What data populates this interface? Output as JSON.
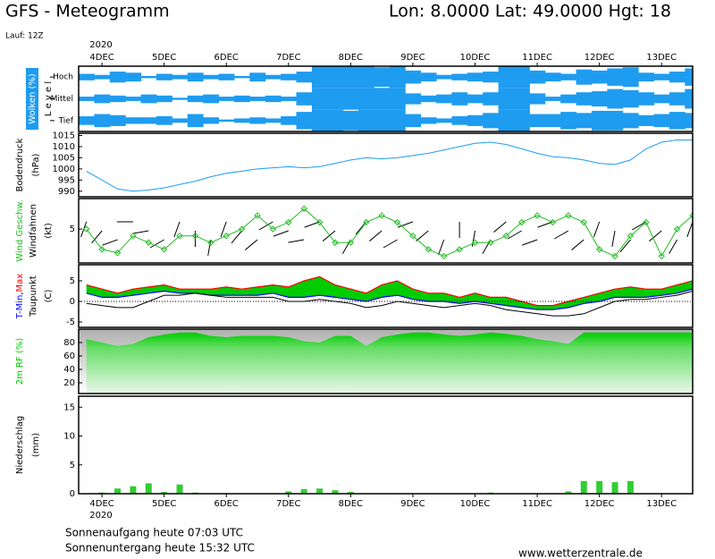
{
  "header": {
    "title": "GFS - Meteogramm",
    "location": "Lon: 8.0000  Lat: 49.0000  Hgt: 18",
    "run": "Lauf: 12Z"
  },
  "time_axis": {
    "year": "2020",
    "xlim": [
      -0.375,
      9.5
    ],
    "xticks": [
      {
        "value": 0,
        "label": "4DEC"
      },
      {
        "value": 1,
        "label": "5DEC"
      },
      {
        "value": 2,
        "label": "6DEC"
      },
      {
        "value": 3,
        "label": "7DEC"
      },
      {
        "value": 4,
        "label": "8DEC"
      },
      {
        "value": 5,
        "label": "9DEC"
      },
      {
        "value": 6,
        "label": "10DEC"
      },
      {
        "value": 7,
        "label": "11DEC"
      },
      {
        "value": 8,
        "label": "12DEC"
      },
      {
        "value": 9,
        "label": "13DEC"
      }
    ],
    "x": [
      -0.25,
      0,
      0.25,
      0.5,
      0.75,
      1,
      1.25,
      1.5,
      1.75,
      2,
      2.25,
      2.5,
      2.75,
      3,
      3.25,
      3.5,
      3.75,
      4,
      4.25,
      4.5,
      4.75,
      5,
      5.25,
      5.5,
      5.75,
      6,
      6.25,
      6.5,
      6.75,
      7,
      7.25,
      7.5,
      7.75,
      8,
      8.25,
      8.5,
      8.75,
      9,
      9.25,
      9.5
    ]
  },
  "chart_data": [
    {
      "type": "cloud-levels",
      "ylabel": "Wolken (%)",
      "level_label": "L e v e l",
      "color": "#1e9cf0",
      "series": [
        {
          "name": "Hoch",
          "values": [
            30,
            20,
            50,
            40,
            10,
            30,
            20,
            40,
            20,
            30,
            10,
            40,
            20,
            30,
            50,
            100,
            100,
            100,
            100,
            90,
            100,
            60,
            40,
            20,
            30,
            40,
            50,
            100,
            100,
            60,
            40,
            30,
            70,
            60,
            80,
            90,
            40,
            30,
            50,
            80
          ]
        },
        {
          "name": "Mittel",
          "values": [
            20,
            40,
            30,
            20,
            40,
            30,
            10,
            30,
            40,
            20,
            30,
            20,
            30,
            20,
            60,
            100,
            100,
            100,
            100,
            100,
            100,
            50,
            30,
            40,
            60,
            40,
            60,
            100,
            100,
            50,
            20,
            40,
            60,
            70,
            90,
            80,
            60,
            40,
            60,
            90
          ]
        },
        {
          "name": "Tief",
          "values": [
            40,
            60,
            50,
            30,
            30,
            40,
            20,
            60,
            30,
            10,
            20,
            30,
            20,
            40,
            80,
            100,
            100,
            90,
            100,
            100,
            100,
            60,
            30,
            20,
            40,
            50,
            70,
            100,
            100,
            60,
            60,
            80,
            70,
            90,
            90,
            70,
            50,
            60,
            80,
            70
          ]
        }
      ]
    },
    {
      "type": "line",
      "ylabel": "Bodendruck",
      "unit": "(hPa)",
      "color": "#1e9cf0",
      "ylim": [
        987.5,
        1016
      ],
      "yticks": [
        990,
        995,
        1000,
        1005,
        1010,
        1015
      ],
      "values": [
        999,
        995,
        991,
        990,
        990.5,
        991.5,
        993,
        994.5,
        996.5,
        998,
        999,
        1000,
        1000.5,
        1001,
        1000.5,
        1001,
        1002.5,
        1004,
        1005,
        1004.5,
        1005,
        1006,
        1007,
        1008.5,
        1010,
        1011.5,
        1012,
        1011,
        1009,
        1007,
        1005.5,
        1005,
        1004,
        1002.5,
        1002,
        1004,
        1009,
        1012,
        1013,
        1013
      ]
    },
    {
      "type": "wind",
      "ylabel": "Wind Geschw.",
      "ylabel2": "Windfahnen",
      "unit": "(kt)",
      "color": "#22bb22",
      "ylim": [
        0,
        9.5
      ],
      "yticks": [
        5
      ],
      "values": [
        5,
        2,
        1.5,
        4,
        3,
        2,
        4,
        4,
        3,
        4,
        5,
        7,
        5,
        6,
        8,
        6,
        3,
        3,
        6,
        7,
        6,
        4,
        2,
        1,
        2,
        3,
        3,
        4,
        6,
        7,
        6,
        7,
        6,
        2,
        1,
        4,
        6,
        1,
        5,
        7
      ],
      "direction": [
        200,
        220,
        250,
        270,
        260,
        240,
        200,
        180,
        190,
        200,
        220,
        230,
        240,
        250,
        260,
        250,
        230,
        210,
        220,
        230,
        240,
        250,
        230,
        200,
        180,
        190,
        210,
        230,
        240,
        250,
        250,
        240,
        230,
        200,
        190,
        220,
        240,
        230,
        210,
        200
      ]
    },
    {
      "type": "temperature",
      "unit": "(C)",
      "label_separator": ",",
      "fill_color": "#00cc00",
      "ylim": [
        -6.3,
        8.9
      ],
      "yticks": [
        -5,
        0,
        5
      ],
      "series": [
        {
          "name": "T-Min",
          "color": "#0000ff",
          "values": [
            2,
            1,
            1,
            1.5,
            2,
            2.5,
            2,
            2,
            1.5,
            1.5,
            1.5,
            1.5,
            2,
            1,
            1,
            1.5,
            1,
            0.5,
            0,
            1,
            1.5,
            0.5,
            0,
            0,
            -0.5,
            0,
            -0.5,
            -1,
            -1.5,
            -2,
            -2,
            -1.5,
            -0.5,
            0,
            1,
            1,
            1,
            1.5,
            2,
            3
          ]
        },
        {
          "name": "Max",
          "color": "#ff0000",
          "values": [
            4,
            3,
            2,
            3,
            3.5,
            4,
            3,
            3,
            3,
            3.5,
            3,
            3.5,
            4,
            3.5,
            5,
            6,
            4,
            3,
            2,
            4,
            5,
            3,
            2,
            2,
            1,
            2,
            1,
            1,
            0,
            -1,
            -1,
            0,
            1,
            2,
            3,
            3.5,
            3,
            3,
            4,
            5
          ]
        },
        {
          "name": "Taupunkt",
          "color": "#000000",
          "values": [
            -0.5,
            -1,
            -1.5,
            -1.5,
            0,
            1.5,
            1.5,
            2,
            1.5,
            1,
            1,
            1,
            1,
            0,
            0,
            0.5,
            0,
            -0.5,
            -1.5,
            -1,
            0,
            -0.5,
            -1,
            -1.5,
            -1,
            -0.5,
            -1,
            -2,
            -2.5,
            -3,
            -3.5,
            -3.5,
            -3,
            -1.5,
            0,
            0.5,
            0.5,
            1,
            1.5,
            2.5
          ]
        }
      ]
    },
    {
      "type": "area",
      "ylabel": "2m RF (%)",
      "color": "#00cc00",
      "ylim": [
        4,
        100
      ],
      "yticks": [
        20,
        40,
        60,
        80
      ],
      "values": [
        85,
        80,
        75,
        78,
        88,
        92,
        95,
        95,
        90,
        88,
        90,
        90,
        90,
        88,
        82,
        80,
        90,
        90,
        75,
        88,
        92,
        95,
        95,
        92,
        90,
        92,
        95,
        93,
        90,
        85,
        82,
        78,
        95,
        95,
        95,
        95,
        95,
        95,
        95,
        95
      ]
    },
    {
      "type": "bar",
      "ylabel": "Niederschlag",
      "unit": "(mm)",
      "color": "#33cc33",
      "ylim": [
        0,
        16.9
      ],
      "yticks": [
        0,
        5,
        10,
        15
      ],
      "values": [
        0,
        0.2,
        0.9,
        1.3,
        1.8,
        0.3,
        1.6,
        0.2,
        0,
        0,
        0,
        0,
        0,
        0.4,
        0.8,
        0.9,
        0.6,
        0.3,
        0,
        0,
        0,
        0,
        0,
        0,
        0,
        0,
        0.2,
        0,
        0,
        0,
        0,
        0.4,
        2.2,
        2.2,
        2.0,
        2.2,
        0,
        0,
        0,
        0
      ]
    }
  ],
  "footer": {
    "sunrise": "Sonnenaufgang heute 07:03 UTC",
    "sunset": "Sonnenuntergang heute 15:32 UTC",
    "source": "www.wetterzentrale.de"
  }
}
